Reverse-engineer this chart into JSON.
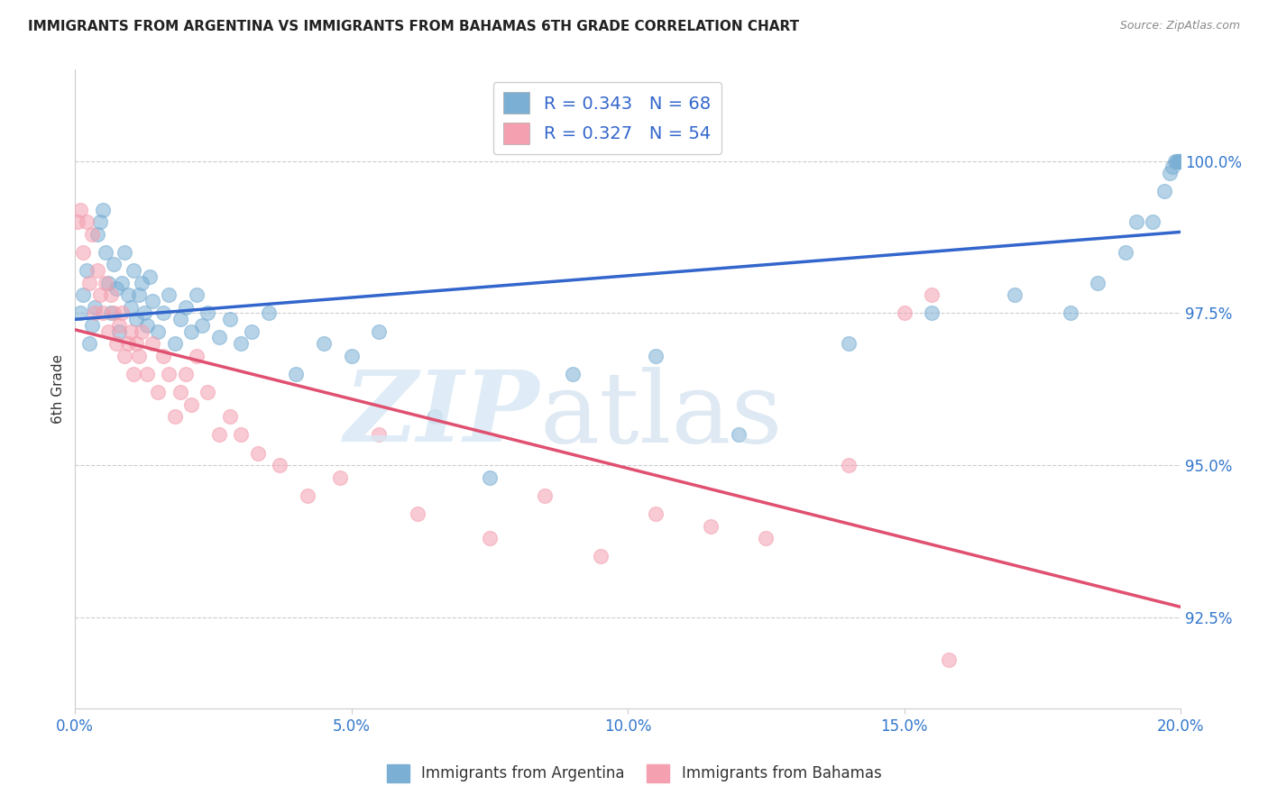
{
  "title": "IMMIGRANTS FROM ARGENTINA VS IMMIGRANTS FROM BAHAMAS 6TH GRADE CORRELATION CHART",
  "source": "Source: ZipAtlas.com",
  "ylabel": "6th Grade",
  "xlim": [
    0.0,
    20.0
  ],
  "ylim": [
    91.0,
    101.5
  ],
  "xticks": [
    0.0,
    5.0,
    10.0,
    15.0,
    20.0
  ],
  "xticklabels": [
    "0.0%",
    "5.0%",
    "10.0%",
    "15.0%",
    "20.0%"
  ],
  "yticks": [
    92.5,
    95.0,
    97.5,
    100.0
  ],
  "yticklabels": [
    "92.5%",
    "95.0%",
    "97.5%",
    "100.0%"
  ],
  "legend_R_blue": "R = 0.343",
  "legend_N_blue": "N = 68",
  "legend_R_pink": "R = 0.327",
  "legend_N_pink": "N = 54",
  "blue_color": "#7BAFD4",
  "pink_color": "#F4A0B0",
  "trend_blue": "#3366CC",
  "trend_pink": "#E05070",
  "argentina_x": [
    0.1,
    0.15,
    0.2,
    0.25,
    0.3,
    0.35,
    0.4,
    0.45,
    0.5,
    0.55,
    0.6,
    0.65,
    0.7,
    0.75,
    0.8,
    0.85,
    0.9,
    0.95,
    1.0,
    1.05,
    1.1,
    1.15,
    1.2,
    1.25,
    1.3,
    1.35,
    1.4,
    1.5,
    1.6,
    1.7,
    1.8,
    1.9,
    2.0,
    2.1,
    2.2,
    2.3,
    2.4,
    2.6,
    2.8,
    3.0,
    3.2,
    3.5,
    4.0,
    4.5,
    5.0,
    5.5,
    6.5,
    7.5,
    9.0,
    10.5,
    12.0,
    14.0,
    15.5,
    17.0,
    18.0,
    18.5,
    19.0,
    19.2,
    19.5,
    19.7,
    19.8,
    19.85,
    19.9,
    19.93,
    19.95,
    19.97,
    19.98,
    19.99
  ],
  "argentina_y": [
    97.5,
    97.8,
    98.2,
    97.0,
    97.3,
    97.6,
    98.8,
    99.0,
    99.2,
    98.5,
    98.0,
    97.5,
    98.3,
    97.9,
    97.2,
    98.0,
    98.5,
    97.8,
    97.6,
    98.2,
    97.4,
    97.8,
    98.0,
    97.5,
    97.3,
    98.1,
    97.7,
    97.2,
    97.5,
    97.8,
    97.0,
    97.4,
    97.6,
    97.2,
    97.8,
    97.3,
    97.5,
    97.1,
    97.4,
    97.0,
    97.2,
    97.5,
    96.5,
    97.0,
    96.8,
    97.2,
    95.8,
    94.8,
    96.5,
    96.8,
    95.5,
    97.0,
    97.5,
    97.8,
    97.5,
    98.0,
    98.5,
    99.0,
    99.0,
    99.5,
    99.8,
    99.9,
    100.0,
    100.0,
    100.0,
    100.0,
    100.0,
    100.0
  ],
  "bahamas_x": [
    0.05,
    0.1,
    0.15,
    0.2,
    0.25,
    0.3,
    0.35,
    0.4,
    0.45,
    0.5,
    0.55,
    0.6,
    0.65,
    0.7,
    0.75,
    0.8,
    0.85,
    0.9,
    0.95,
    1.0,
    1.05,
    1.1,
    1.15,
    1.2,
    1.3,
    1.4,
    1.5,
    1.6,
    1.7,
    1.8,
    1.9,
    2.0,
    2.1,
    2.2,
    2.4,
    2.6,
    2.8,
    3.0,
    3.3,
    3.7,
    4.2,
    4.8,
    5.5,
    6.2,
    7.5,
    8.5,
    9.5,
    10.5,
    11.5,
    12.5,
    14.0,
    15.0,
    15.5,
    15.8
  ],
  "bahamas_y": [
    99.0,
    99.2,
    98.5,
    99.0,
    98.0,
    98.8,
    97.5,
    98.2,
    97.8,
    97.5,
    98.0,
    97.2,
    97.8,
    97.5,
    97.0,
    97.3,
    97.5,
    96.8,
    97.0,
    97.2,
    96.5,
    97.0,
    96.8,
    97.2,
    96.5,
    97.0,
    96.2,
    96.8,
    96.5,
    95.8,
    96.2,
    96.5,
    96.0,
    96.8,
    96.2,
    95.5,
    95.8,
    95.5,
    95.2,
    95.0,
    94.5,
    94.8,
    95.5,
    94.2,
    93.8,
    94.5,
    93.5,
    94.2,
    94.0,
    93.8,
    95.0,
    97.5,
    97.8,
    91.8
  ]
}
